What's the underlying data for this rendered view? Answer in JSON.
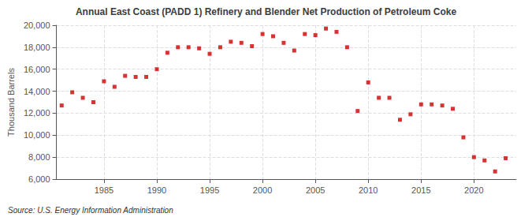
{
  "chart_data": {
    "type": "scatter",
    "title": "Annual East Coast (PADD 1) Refinery and Blender Net Production of Petroleum Coke",
    "ylabel": "Thousand Barrels",
    "annotations": [
      "Source: U.S. Energy Information Administration"
    ],
    "x": [
      1981,
      1982,
      1983,
      1984,
      1985,
      1986,
      1987,
      1988,
      1989,
      1990,
      1991,
      1992,
      1993,
      1994,
      1995,
      1996,
      1997,
      1998,
      1999,
      2000,
      2001,
      2002,
      2003,
      2004,
      2005,
      2006,
      2007,
      2008,
      2009,
      2010,
      2011,
      2012,
      2013,
      2014,
      2015,
      2016,
      2017,
      2018,
      2019,
      2020,
      2021,
      2022,
      2023
    ],
    "values": [
      12700,
      13900,
      13400,
      13000,
      14900,
      14400,
      15400,
      15300,
      15300,
      16000,
      17500,
      18000,
      18000,
      17900,
      17400,
      18000,
      18500,
      18400,
      18100,
      19200,
      19000,
      18400,
      17700,
      19200,
      19100,
      19700,
      19400,
      18000,
      12200,
      14800,
      13400,
      13400,
      11400,
      11900,
      12800,
      12800,
      12700,
      12400,
      9800,
      8000,
      7700,
      6700,
      7900
    ],
    "color": "#cc0000",
    "marker": "square",
    "xlim": [
      1980.5,
      2024
    ],
    "xticks": [
      1985,
      1990,
      1995,
      2000,
      2005,
      2010,
      2015,
      2020
    ],
    "ylim": [
      6000,
      20000
    ],
    "yticks": [
      {
        "value": 6000,
        "label": "6,000"
      },
      {
        "value": 8000,
        "label": "8,000"
      },
      {
        "value": 10000,
        "label": "10,000"
      },
      {
        "value": 12000,
        "label": "12,000"
      },
      {
        "value": 14000,
        "label": "14,000"
      },
      {
        "value": 16000,
        "label": "16,000"
      },
      {
        "value": 18000,
        "label": "18,000"
      },
      {
        "value": 20000,
        "label": "20,000"
      }
    ],
    "grid": true
  }
}
